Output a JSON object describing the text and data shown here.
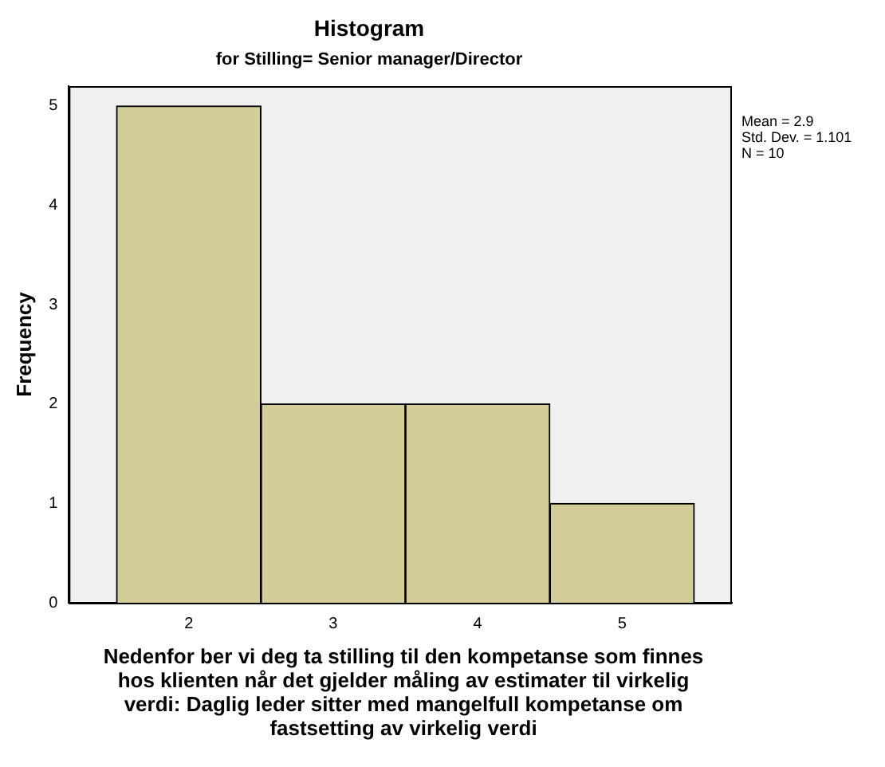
{
  "chart_data": {
    "type": "histogram",
    "title": "Histogram",
    "subtitle": "for Stilling= Senior manager/Director",
    "xlabel": "Nedenfor ber vi deg ta stilling til den kompetanse som finnes hos klienten når det gjelder måling av estimater til virkelig verdi: Daglig leder sitter med mangelfull kompetanse om fastsetting av virkelig verdi",
    "ylabel": "Frequency",
    "bins": [
      1.5,
      2.5,
      3.5,
      4.5,
      5.5
    ],
    "values": [
      5,
      2,
      2,
      1
    ],
    "color": "#d3ce97",
    "xlim": [
      1.17,
      5.76
    ],
    "xticks": [
      2,
      3,
      4,
      5
    ],
    "ylim": [
      0,
      5.2
    ],
    "yticks": [
      0,
      1,
      2,
      3,
      4,
      5
    ],
    "grid": false,
    "legend": false,
    "annotations": [
      "Mean = 2.9",
      "Std. Dev. = 1.101",
      "N = 10"
    ]
  }
}
